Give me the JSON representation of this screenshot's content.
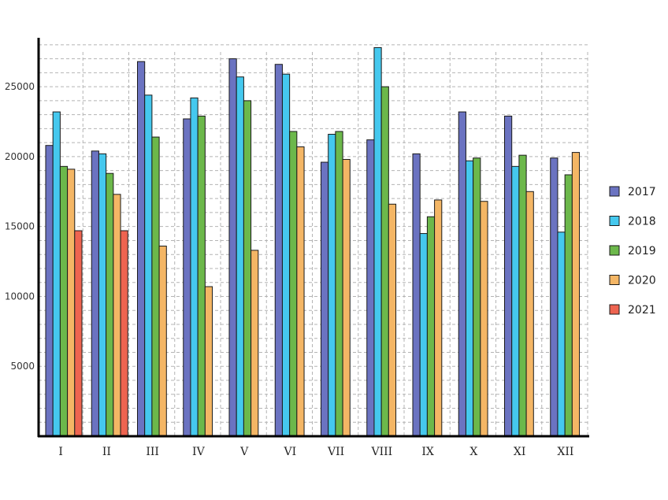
{
  "chart_data": {
    "type": "bar",
    "categories": [
      "I",
      "II",
      "III",
      "IV",
      "V",
      "VI",
      "VII",
      "VIII",
      "IX",
      "X",
      "XI",
      "XII"
    ],
    "series": [
      {
        "name": "2017",
        "color": "#6b73c1",
        "values": [
          20800,
          20400,
          26800,
          22700,
          27000,
          26600,
          19600,
          21200,
          20200,
          23200,
          22900,
          19900
        ]
      },
      {
        "name": "2018",
        "color": "#45c8ee",
        "values": [
          23200,
          20200,
          24400,
          24200,
          25700,
          25900,
          21600,
          27800,
          14500,
          19700,
          19300,
          14600
        ]
      },
      {
        "name": "2019",
        "color": "#6cb84b",
        "values": [
          19300,
          18800,
          21400,
          22900,
          24000,
          21800,
          21800,
          25000,
          15700,
          19900,
          20100,
          18700
        ]
      },
      {
        "name": "2020",
        "color": "#f4b665",
        "values": [
          19100,
          17300,
          13600,
          10700,
          13300,
          20700,
          19800,
          16600,
          16900,
          16800,
          17500,
          20300
        ]
      },
      {
        "name": "2021",
        "color": "#ee6450",
        "values": [
          14700,
          14700,
          null,
          null,
          null,
          null,
          null,
          null,
          null,
          null,
          null,
          null
        ]
      }
    ],
    "yticks": [
      "5000",
      "10000",
      "15000",
      "20000",
      "25000"
    ],
    "ylim": [
      0,
      28500
    ],
    "grid": true,
    "legend_position": "right",
    "title": "",
    "xlabel": "",
    "ylabel": ""
  }
}
